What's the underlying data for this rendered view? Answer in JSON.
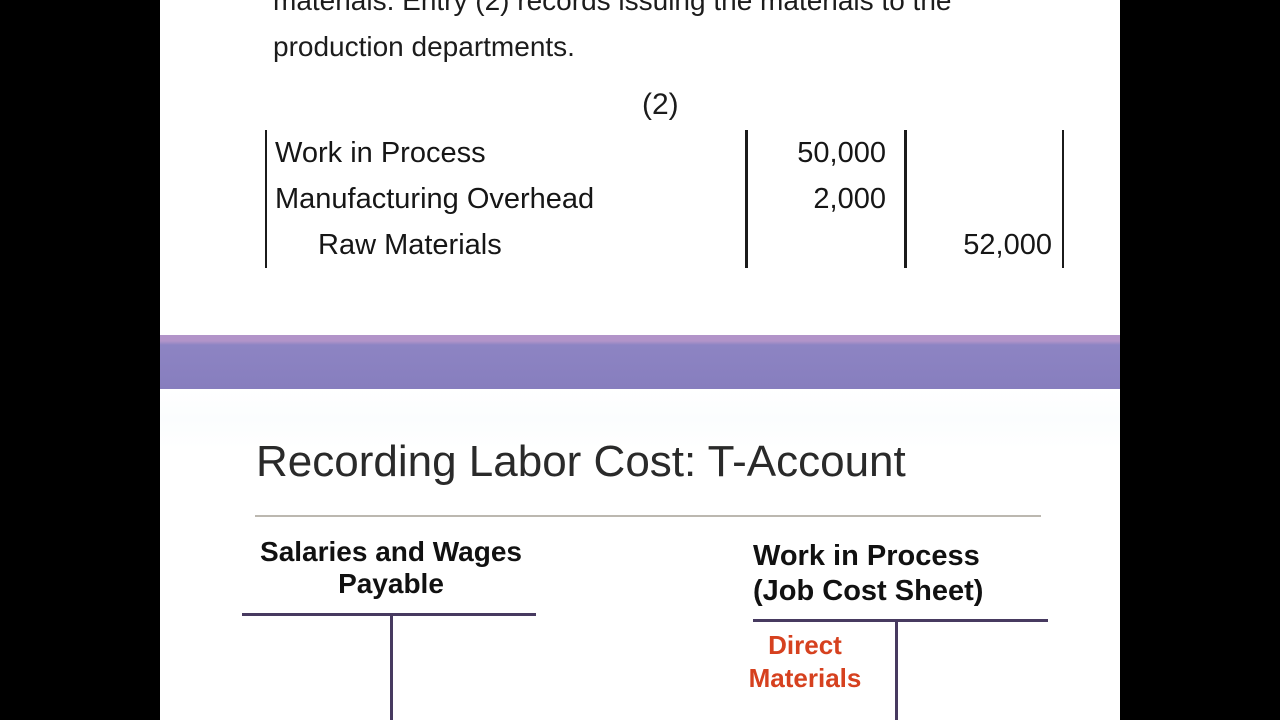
{
  "top_slide": {
    "paragraph": {
      "line1": "materials. Entry (2) records issuing the materials to the",
      "line2": "production departments."
    },
    "entry_number_label": "(2)",
    "journal_entry": {
      "rows": [
        {
          "account": "Work in Process",
          "debit": "50,000",
          "credit": ""
        },
        {
          "account": "Manufacturing Overhead",
          "debit": "2,000",
          "credit": ""
        },
        {
          "account": "Raw Materials",
          "debit": "",
          "credit": "52,000"
        }
      ]
    }
  },
  "divider": {
    "color": "#877ebe",
    "top_edge_color": "#b294c9"
  },
  "bottom_slide": {
    "title": "Recording Labor Cost: T-Account",
    "t_accounts": [
      {
        "name_line1": "Salaries and Wages",
        "name_line2": "Payable"
      },
      {
        "name_line1": "Work in Process",
        "name_line2": "(Job Cost Sheet)",
        "debit_side_label_line1": "Direct",
        "debit_side_label_line2": "Materials"
      }
    ],
    "colors": {
      "t_account_line": "#473a60",
      "accent_label": "#d6411f",
      "title_rule": "#bcb8b0"
    }
  }
}
